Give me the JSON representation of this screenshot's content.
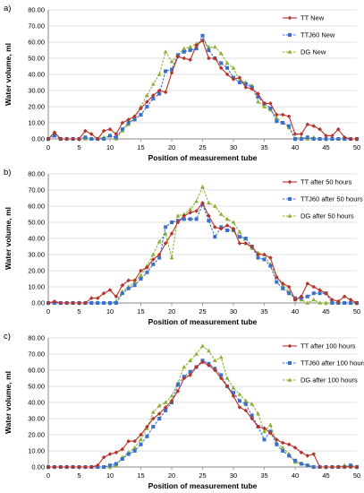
{
  "colors": {
    "tt": "#b5332a",
    "ttj": "#3a6fcb",
    "dg": "#8ab033",
    "grid": "#d9d9d9",
    "axis": "#888888"
  },
  "chart_data": [
    {
      "type": "line",
      "panel_label": "a)",
      "xlabel": "Position of measurement tube",
      "ylabel": "Water volume, ml",
      "xlim": [
        0,
        50
      ],
      "ylim": [
        0,
        80
      ],
      "xticks": [
        "0",
        "5",
        "10",
        "15",
        "20",
        "25",
        "30",
        "35",
        "40",
        "45",
        "50"
      ],
      "yticks": [
        "0.00",
        "10.00",
        "20.00",
        "30.00",
        "40.00",
        "50.00",
        "60.00",
        "70.00",
        "80.00"
      ],
      "grid": true,
      "legend": "top-right",
      "x": [
        0,
        1,
        2,
        3,
        4,
        5,
        6,
        7,
        8,
        9,
        10,
        11,
        12,
        13,
        14,
        15,
        16,
        17,
        18,
        19,
        20,
        21,
        22,
        23,
        24,
        25,
        26,
        27,
        28,
        29,
        30,
        31,
        32,
        33,
        34,
        35,
        36,
        37,
        38,
        39,
        40,
        41,
        42,
        43,
        44,
        45,
        46,
        47,
        48,
        49,
        50
      ],
      "series": [
        {
          "name": "TT New",
          "marker": "diamond",
          "dash": false,
          "values": [
            0,
            4,
            0,
            0,
            0,
            0,
            5,
            3,
            0,
            5,
            6,
            3,
            10,
            12,
            14,
            19,
            23,
            27,
            30,
            29,
            41,
            51,
            50,
            49,
            58,
            61,
            50,
            50,
            44,
            40,
            37,
            38,
            32,
            31,
            28,
            22,
            22,
            15,
            15,
            14,
            3,
            3,
            9,
            8,
            6,
            2,
            2,
            6,
            1,
            0,
            0
          ]
        },
        {
          "name": "TTJ60 New",
          "marker": "square",
          "dash": true,
          "values": [
            0,
            2,
            0,
            0,
            0,
            0,
            1,
            0,
            0,
            0,
            2,
            1,
            6,
            10,
            12,
            15,
            20,
            25,
            28,
            42,
            43,
            52,
            54,
            55,
            56,
            64,
            55,
            50,
            47,
            44,
            38,
            35,
            34,
            32,
            26,
            22,
            19,
            11,
            10,
            8,
            0,
            0,
            1,
            0,
            0,
            0,
            0,
            0,
            0,
            0,
            0
          ]
        },
        {
          "name": "DG New",
          "marker": "triangle",
          "dash": true,
          "values": [
            0,
            4,
            0,
            0,
            0,
            0,
            0,
            0,
            0,
            1,
            2,
            0,
            5,
            9,
            14,
            20,
            27,
            34,
            40,
            54,
            48,
            52,
            56,
            57,
            59,
            61,
            57,
            57,
            53,
            47,
            44,
            36,
            35,
            33,
            23,
            20,
            18,
            13,
            10,
            7,
            0,
            1,
            0,
            1,
            0,
            0,
            0,
            0,
            0,
            0,
            0
          ]
        }
      ]
    },
    {
      "type": "line",
      "panel_label": "b)",
      "xlabel": "Position of measurement tube",
      "ylabel": "Water volume, ml",
      "xlim": [
        0,
        50
      ],
      "ylim": [
        0,
        80
      ],
      "xticks": [
        "0",
        "5",
        "10",
        "15",
        "20",
        "25",
        "30",
        "35",
        "40",
        "45",
        "50"
      ],
      "yticks": [
        "0.00",
        "10.00",
        "20.00",
        "30.00",
        "40.00",
        "50.00",
        "60.00",
        "70.00",
        "80.00"
      ],
      "grid": true,
      "legend": "top-right",
      "x": [
        0,
        1,
        2,
        3,
        4,
        5,
        6,
        7,
        8,
        9,
        10,
        11,
        12,
        13,
        14,
        15,
        16,
        17,
        18,
        19,
        20,
        21,
        22,
        23,
        24,
        25,
        26,
        27,
        28,
        29,
        30,
        31,
        32,
        33,
        34,
        35,
        36,
        37,
        38,
        39,
        40,
        41,
        42,
        43,
        44,
        45,
        46,
        47,
        48,
        49,
        50
      ],
      "series": [
        {
          "name": "TT after 50 hours",
          "marker": "diamond",
          "dash": false,
          "values": [
            0,
            1,
            0,
            0,
            0,
            0,
            0,
            3,
            3,
            6,
            8,
            4,
            11,
            14,
            14,
            20,
            22,
            27,
            30,
            37,
            43,
            50,
            54,
            56,
            57,
            62,
            54,
            47,
            46,
            48,
            46,
            37,
            37,
            35,
            30,
            30,
            28,
            16,
            12,
            10,
            2,
            4,
            12,
            10,
            8,
            6,
            2,
            1,
            4,
            2,
            0
          ]
        },
        {
          "name": "TTJ60 after 50 hours",
          "marker": "square",
          "dash": true,
          "values": [
            0,
            0,
            0,
            0,
            0,
            0,
            0,
            0,
            0,
            0,
            0,
            0,
            6,
            9,
            11,
            15,
            19,
            24,
            28,
            47,
            50,
            51,
            52,
            52,
            52,
            61,
            51,
            41,
            47,
            45,
            45,
            41,
            40,
            35,
            28,
            27,
            23,
            13,
            9,
            6,
            3,
            3,
            4,
            6,
            6,
            6,
            0,
            0,
            0,
            0,
            0
          ]
        },
        {
          "name": "DG after 50 hours",
          "marker": "triangle",
          "dash": true,
          "values": [
            0,
            0,
            0,
            0,
            0,
            0,
            0,
            0,
            0,
            0,
            0,
            1,
            7,
            10,
            13,
            17,
            23,
            30,
            38,
            43,
            28,
            54,
            55,
            58,
            63,
            72,
            62,
            60,
            55,
            52,
            50,
            44,
            37,
            34,
            31,
            30,
            24,
            16,
            11,
            7,
            2,
            2,
            0,
            2,
            0,
            0,
            0,
            0,
            0,
            0,
            0
          ]
        }
      ]
    },
    {
      "type": "line",
      "panel_label": "c)",
      "xlabel": "Position of measurement tube",
      "ylabel": "Water volume, ml",
      "xlim": [
        0,
        50
      ],
      "ylim": [
        0,
        80
      ],
      "xticks": [
        "0",
        "5",
        "10",
        "15",
        "20",
        "25",
        "30",
        "35",
        "40",
        "45",
        "50"
      ],
      "yticks": [
        "0.00",
        "10.00",
        "20.00",
        "30.00",
        "40.00",
        "50.00",
        "60.00",
        "70.00",
        "80.00"
      ],
      "grid": true,
      "legend": "top-right",
      "x": [
        0,
        1,
        2,
        3,
        4,
        5,
        6,
        7,
        8,
        9,
        10,
        11,
        12,
        13,
        14,
        15,
        16,
        17,
        18,
        19,
        20,
        21,
        22,
        23,
        24,
        25,
        26,
        27,
        28,
        29,
        30,
        31,
        32,
        33,
        34,
        35,
        36,
        37,
        38,
        39,
        40,
        41,
        42,
        43,
        44,
        45,
        46,
        47,
        48,
        49,
        50
      ],
      "series": [
        {
          "name": "TT after 100 hours",
          "marker": "diamond",
          "dash": false,
          "values": [
            0,
            0,
            0,
            0,
            0,
            0,
            0,
            0,
            1,
            6,
            8,
            9,
            11,
            16,
            16,
            20,
            25,
            30,
            33,
            37,
            41,
            47,
            55,
            57,
            62,
            65,
            63,
            60,
            55,
            50,
            44,
            37,
            35,
            30,
            25,
            24,
            21,
            17,
            15,
            14,
            12,
            9,
            7,
            8,
            0,
            0,
            0,
            0,
            0,
            0,
            0
          ]
        },
        {
          "name": "TTJ60 after 100 hours",
          "marker": "square",
          "dash": true,
          "values": [
            0,
            0,
            0,
            0,
            0,
            0,
            0,
            0,
            0,
            0,
            1,
            2,
            5,
            8,
            10,
            14,
            19,
            25,
            30,
            35,
            40,
            51,
            56,
            59,
            62,
            66,
            64,
            61,
            57,
            50,
            46,
            41,
            39,
            32,
            25,
            17,
            22,
            14,
            10,
            7,
            4,
            2,
            1,
            0,
            0,
            0,
            0,
            0,
            0,
            1,
            0
          ]
        },
        {
          "name": "DG after 100 hours",
          "marker": "triangle",
          "dash": true,
          "values": [
            0,
            0,
            0,
            0,
            0,
            0,
            0,
            0,
            0,
            0,
            0,
            1,
            6,
            9,
            12,
            17,
            24,
            34,
            38,
            40,
            44,
            52,
            62,
            66,
            70,
            75,
            72,
            66,
            68,
            55,
            49,
            45,
            41,
            39,
            33,
            22,
            26,
            15,
            12,
            8,
            3,
            2,
            1,
            0,
            0,
            0,
            0,
            0,
            1,
            0,
            0
          ]
        }
      ]
    }
  ]
}
